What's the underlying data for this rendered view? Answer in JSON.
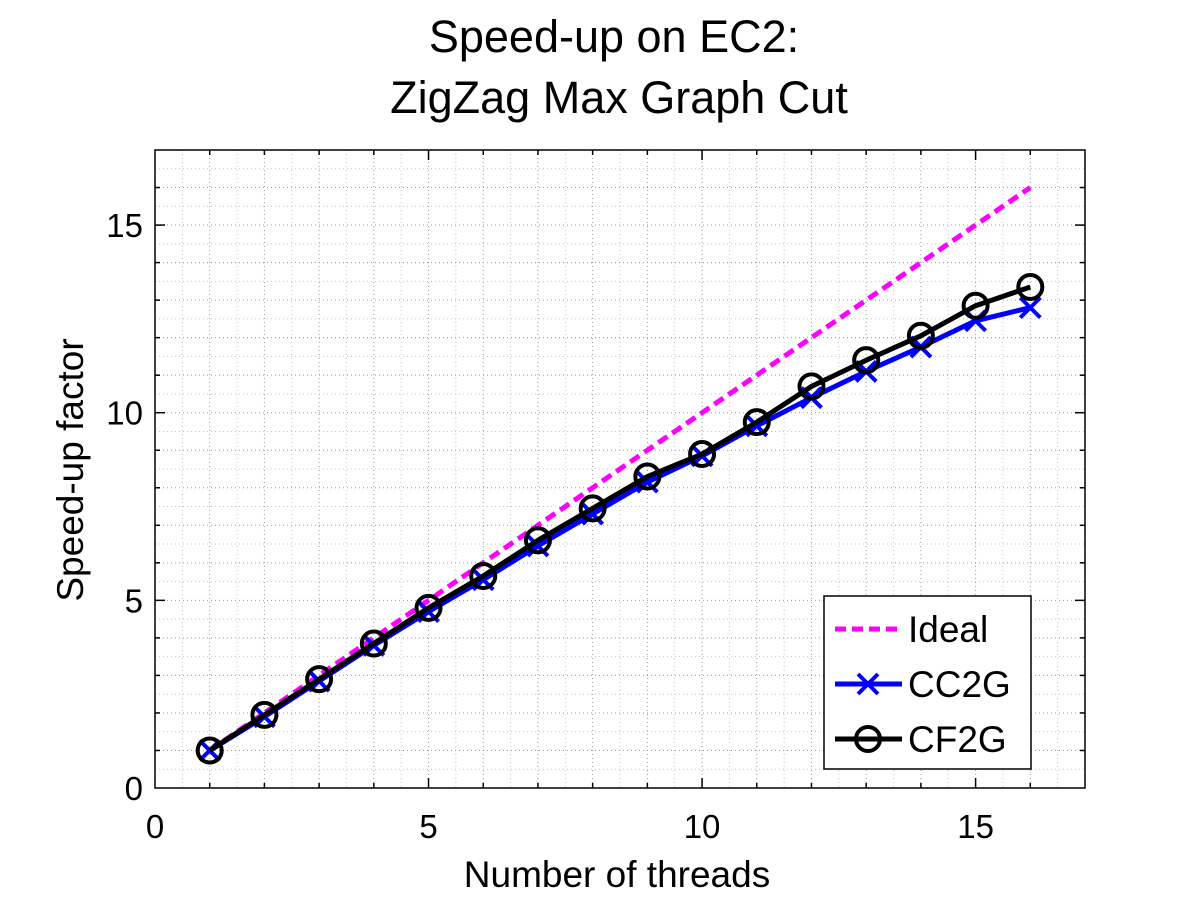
{
  "chart_data": {
    "type": "line",
    "title": [
      "Speed-up on EC2:",
      "ZigZag Max Graph Cut"
    ],
    "xlabel": "Number of threads",
    "ylabel": "Speed-up factor",
    "xlim": [
      0,
      17
    ],
    "ylim": [
      0,
      17
    ],
    "xticks": [
      0,
      5,
      10,
      15
    ],
    "yticks": [
      0,
      5,
      10,
      15
    ],
    "grid": true,
    "minor_grid": true,
    "legend_position": "bottom-right",
    "x": [
      1,
      2,
      3,
      4,
      5,
      6,
      7,
      8,
      9,
      10,
      11,
      12,
      13,
      14,
      15,
      16
    ],
    "series": [
      {
        "name": "Ideal",
        "color": "#ff00ff",
        "line_style": "dashed",
        "marker": "none",
        "values": [
          1,
          2,
          3,
          4,
          5,
          6,
          7,
          8,
          9,
          10,
          11,
          12,
          13,
          14,
          15,
          16
        ]
      },
      {
        "name": "CC2G",
        "color": "#0000ff",
        "line_style": "solid",
        "marker": "x",
        "values": [
          1.0,
          1.9,
          2.85,
          3.8,
          4.7,
          5.55,
          6.45,
          7.3,
          8.15,
          8.85,
          9.65,
          10.4,
          11.1,
          11.75,
          12.45,
          12.8
        ]
      },
      {
        "name": "CF2G",
        "color": "#000000",
        "line_style": "solid",
        "marker": "o",
        "values": [
          1.0,
          1.95,
          2.9,
          3.85,
          4.8,
          5.65,
          6.6,
          7.45,
          8.3,
          8.9,
          9.75,
          10.7,
          11.4,
          12.05,
          12.85,
          13.35
        ]
      }
    ]
  }
}
